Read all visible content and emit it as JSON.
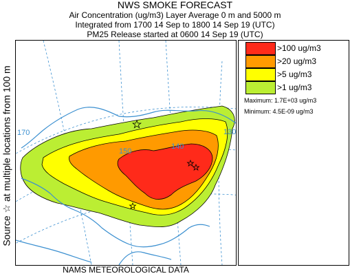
{
  "header": {
    "title": "NWS SMOKE FORECAST",
    "line1": "Air Concentration (ug/m3) Layer Average    0 m and  5000 m",
    "line2": "Integrated from 1700 14 Sep to 1800 14 Sep 19 (UTC)",
    "line3": "PM25 Release started at 0600 14 Sep 19 (UTC)"
  },
  "side_label": "Source ☆    at multiple locations    from  100 m",
  "footer": "NAMS METEOROLOGICAL DATA",
  "map": {
    "grid_labels": [
      "170",
      "150",
      "140",
      "130"
    ],
    "source_marker_icon": "star-outline-icon"
  },
  "legend": {
    "items": [
      {
        "label": ">100 ug/m3",
        "color": "#ff2a1a"
      },
      {
        "label": ">20 ug/m3",
        "color": "#ff9a00"
      },
      {
        "label": ">5 ug/m3",
        "color": "#ffff00"
      },
      {
        "label": ">1 ug/m3",
        "color": "#bbee33"
      }
    ],
    "maximum": "Maximum: 1.7E+03 ug/m3",
    "minimum": "Minimum: 4.5E-09 ug/m3"
  },
  "colors": {
    "coastline": "#3a8fd0",
    "gridline": "#3a8fd0",
    "contour": "#000000"
  }
}
